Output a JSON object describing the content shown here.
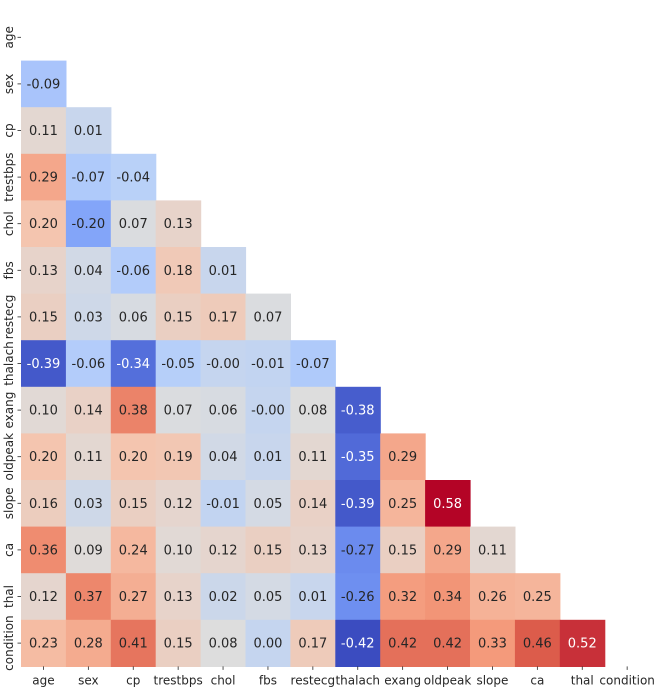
{
  "chart_data": {
    "type": "heatmap",
    "title": "",
    "xlabel": "",
    "ylabel": "",
    "mask": "upper-triangle-incl-diagonal",
    "colormap": "coolwarm",
    "color_range": [
      -0.42,
      0.58
    ],
    "variables": [
      "age",
      "sex",
      "cp",
      "trestbps",
      "chol",
      "fbs",
      "restecg",
      "thalach",
      "exang",
      "oldpeak",
      "slope",
      "ca",
      "thal",
      "condition"
    ],
    "matrix": [
      [],
      [
        -0.09
      ],
      [
        0.11,
        0.01
      ],
      [
        0.29,
        -0.07,
        -0.04
      ],
      [
        0.2,
        -0.2,
        0.07,
        0.13
      ],
      [
        0.13,
        0.04,
        -0.06,
        0.18,
        0.01
      ],
      [
        0.15,
        0.03,
        0.06,
        0.15,
        0.17,
        0.07
      ],
      [
        -0.39,
        -0.06,
        -0.34,
        -0.05,
        -0.0,
        -0.01,
        -0.07
      ],
      [
        0.1,
        0.14,
        0.38,
        0.07,
        0.06,
        -0.0,
        0.08,
        -0.38
      ],
      [
        0.2,
        0.11,
        0.2,
        0.19,
        0.04,
        0.01,
        0.11,
        -0.35,
        0.29
      ],
      [
        0.16,
        0.03,
        0.15,
        0.12,
        -0.01,
        0.05,
        0.14,
        -0.39,
        0.25,
        0.58
      ],
      [
        0.36,
        0.09,
        0.24,
        0.1,
        0.12,
        0.15,
        0.13,
        -0.27,
        0.15,
        0.29,
        0.11
      ],
      [
        0.12,
        0.37,
        0.27,
        0.13,
        0.02,
        0.05,
        0.01,
        -0.26,
        0.32,
        0.34,
        0.26,
        0.25
      ],
      [
        0.23,
        0.28,
        0.41,
        0.15,
        0.08,
        0.0,
        0.17,
        -0.42,
        0.42,
        0.42,
        0.33,
        0.46,
        0.52
      ]
    ],
    "matrix_labels": [
      [],
      [
        "-0.09"
      ],
      [
        "0.11",
        "0.01"
      ],
      [
        "0.29",
        "-0.07",
        "-0.04"
      ],
      [
        "0.20",
        "-0.20",
        "0.07",
        "0.13"
      ],
      [
        "0.13",
        "0.04",
        "-0.06",
        "0.18",
        "0.01"
      ],
      [
        "0.15",
        "0.03",
        "0.06",
        "0.15",
        "0.17",
        "0.07"
      ],
      [
        "-0.39",
        "-0.06",
        "-0.34",
        "-0.05",
        "-0.00",
        "-0.01",
        "-0.07"
      ],
      [
        "0.10",
        "0.14",
        "0.38",
        "0.07",
        "0.06",
        "-0.00",
        "0.08",
        "-0.38"
      ],
      [
        "0.20",
        "0.11",
        "0.20",
        "0.19",
        "0.04",
        "0.01",
        "0.11",
        "-0.35",
        "0.29"
      ],
      [
        "0.16",
        "0.03",
        "0.15",
        "0.12",
        "-0.01",
        "0.05",
        "0.14",
        "-0.39",
        "0.25",
        "0.58"
      ],
      [
        "0.36",
        "0.09",
        "0.24",
        "0.10",
        "0.12",
        "0.15",
        "0.13",
        "-0.27",
        "0.15",
        "0.29",
        "0.11"
      ],
      [
        "0.12",
        "0.37",
        "0.27",
        "0.13",
        "0.02",
        "0.05",
        "0.01",
        "-0.26",
        "0.32",
        "0.34",
        "0.26",
        "0.25"
      ],
      [
        "0.23",
        "0.28",
        "0.41",
        "0.15",
        "0.08",
        "0.00",
        "0.17",
        "-0.42",
        "0.42",
        "0.42",
        "0.33",
        "0.46",
        "0.52"
      ]
    ]
  }
}
